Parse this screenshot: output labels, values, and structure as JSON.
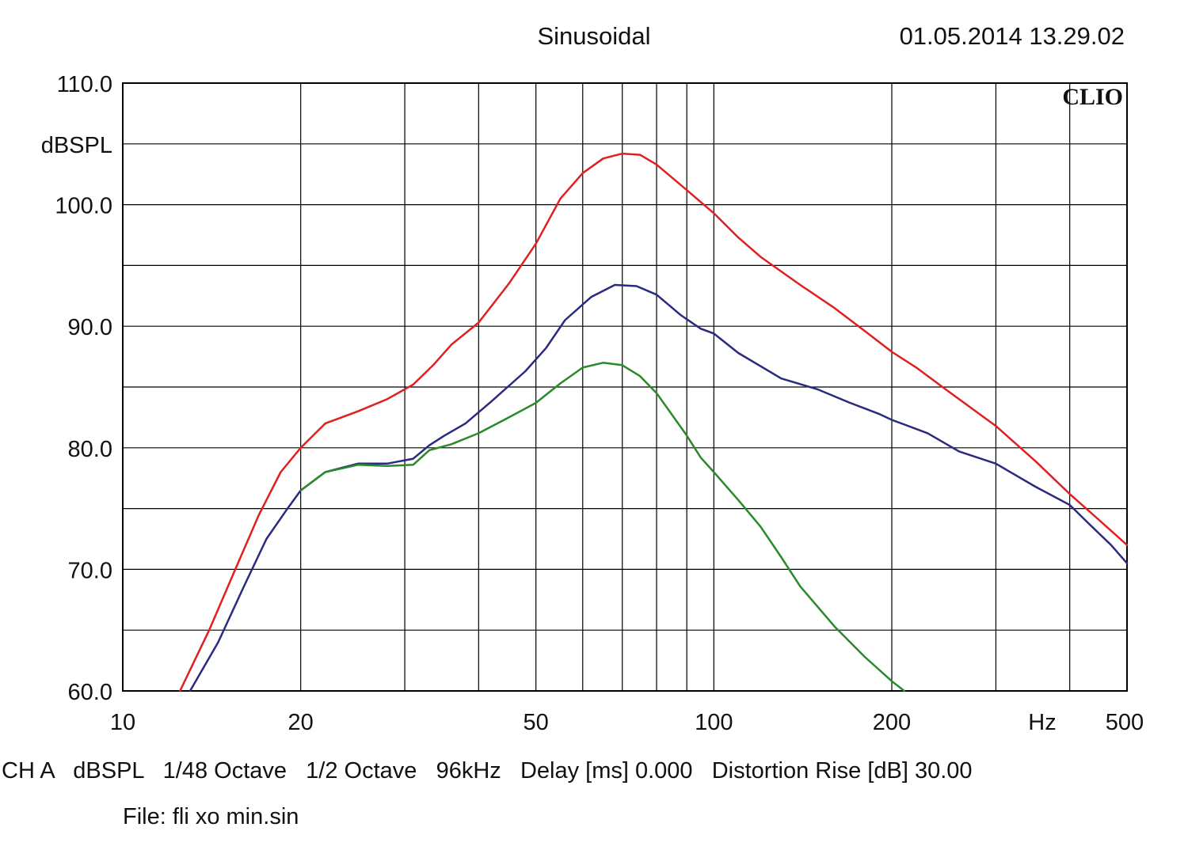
{
  "header": {
    "title": "Sinusoidal",
    "datetime": "01.05.2014 13.29.02",
    "brand": "CLIO"
  },
  "footer": {
    "settings_line": "CH A   dBSPL   1/48 Octave   1/2 Octave   96kHz   Delay [ms] 0.000   Distortion Rise [dB] 30.00",
    "file_line": "File: fli xo min.sin"
  },
  "colors": {
    "red": "#e02020",
    "blue": "#2a2a80",
    "green": "#2a8a2a",
    "grid": "#000000"
  },
  "chart_data": {
    "type": "line",
    "title": "Sinusoidal",
    "xlabel": "Hz",
    "ylabel": "dBSPL",
    "xscale": "log",
    "xlim": [
      10,
      500
    ],
    "ylim": [
      60,
      110
    ],
    "grid": true,
    "x_ticks": [
      10,
      20,
      50,
      100,
      200,
      500
    ],
    "x_tick_labels": [
      "10",
      "20",
      "50",
      "100",
      "200",
      "500"
    ],
    "x_grid": [
      20,
      30,
      40,
      50,
      60,
      70,
      80,
      90,
      100,
      200,
      300,
      400
    ],
    "y_ticks": [
      60,
      70,
      80,
      90,
      100,
      110
    ],
    "y_tick_labels": [
      "60.0",
      "70.0",
      "80.0",
      "90.0",
      "100.0",
      "110.0"
    ],
    "y_grid": [
      65,
      70,
      75,
      80,
      85,
      90,
      95,
      100,
      105
    ],
    "series": [
      {
        "color": "#e02020",
        "points": [
          [
            12.5,
            60
          ],
          [
            14,
            65
          ],
          [
            15.5,
            70
          ],
          [
            17,
            74.5
          ],
          [
            18.5,
            78
          ],
          [
            20,
            80
          ],
          [
            22,
            82
          ],
          [
            25,
            83
          ],
          [
            28,
            84
          ],
          [
            31,
            85.2
          ],
          [
            33.5,
            86.8
          ],
          [
            36,
            88.5
          ],
          [
            40,
            90.3
          ],
          [
            45,
            93.5
          ],
          [
            50,
            96.8
          ],
          [
            55,
            100.5
          ],
          [
            60,
            102.6
          ],
          [
            65,
            103.8
          ],
          [
            70,
            104.2
          ],
          [
            75,
            104.1
          ],
          [
            80,
            103.3
          ],
          [
            90,
            101.2
          ],
          [
            100,
            99.3
          ],
          [
            110,
            97.3
          ],
          [
            120,
            95.7
          ],
          [
            140,
            93.4
          ],
          [
            160,
            91.5
          ],
          [
            180,
            89.6
          ],
          [
            200,
            87.9
          ],
          [
            220,
            86.6
          ],
          [
            250,
            84.6
          ],
          [
            300,
            81.8
          ],
          [
            350,
            78.9
          ],
          [
            400,
            76.2
          ],
          [
            450,
            74
          ],
          [
            500,
            72
          ]
        ]
      },
      {
        "color": "#2a2a80",
        "points": [
          [
            13,
            60
          ],
          [
            14.5,
            64
          ],
          [
            16,
            68.5
          ],
          [
            17.5,
            72.5
          ],
          [
            19,
            75
          ],
          [
            20,
            76.5
          ],
          [
            22,
            78
          ],
          [
            25,
            78.7
          ],
          [
            28,
            78.7
          ],
          [
            31,
            79.1
          ],
          [
            33,
            80.2
          ],
          [
            35,
            81
          ],
          [
            38,
            82
          ],
          [
            42,
            83.8
          ],
          [
            48,
            86.3
          ],
          [
            52,
            88.2
          ],
          [
            56,
            90.5
          ],
          [
            62,
            92.4
          ],
          [
            68,
            93.4
          ],
          [
            74,
            93.3
          ],
          [
            80,
            92.6
          ],
          [
            88,
            90.9
          ],
          [
            95,
            89.8
          ],
          [
            100,
            89.4
          ],
          [
            110,
            87.8
          ],
          [
            130,
            85.7
          ],
          [
            150,
            84.8
          ],
          [
            170,
            83.7
          ],
          [
            190,
            82.8
          ],
          [
            200,
            82.3
          ],
          [
            230,
            81.2
          ],
          [
            260,
            79.7
          ],
          [
            300,
            78.7
          ],
          [
            350,
            76.8
          ],
          [
            400,
            75.3
          ],
          [
            430,
            73.8
          ],
          [
            470,
            72
          ],
          [
            500,
            70.5
          ]
        ]
      },
      {
        "color": "#2a8a2a",
        "points": [
          [
            20,
            76.5
          ],
          [
            22,
            78
          ],
          [
            25,
            78.6
          ],
          [
            28,
            78.5
          ],
          [
            31,
            78.6
          ],
          [
            33,
            79.8
          ],
          [
            36,
            80.3
          ],
          [
            40,
            81.2
          ],
          [
            45,
            82.5
          ],
          [
            50,
            83.7
          ],
          [
            55,
            85.3
          ],
          [
            60,
            86.6
          ],
          [
            65,
            87
          ],
          [
            70,
            86.8
          ],
          [
            75,
            85.9
          ],
          [
            80,
            84.5
          ],
          [
            90,
            81
          ],
          [
            95,
            79.2
          ],
          [
            100,
            78
          ],
          [
            110,
            75.7
          ],
          [
            120,
            73.5
          ],
          [
            130,
            71
          ],
          [
            140,
            68.6
          ],
          [
            160,
            65.3
          ],
          [
            180,
            62.8
          ],
          [
            200,
            60.8
          ],
          [
            210,
            60
          ]
        ]
      }
    ]
  }
}
